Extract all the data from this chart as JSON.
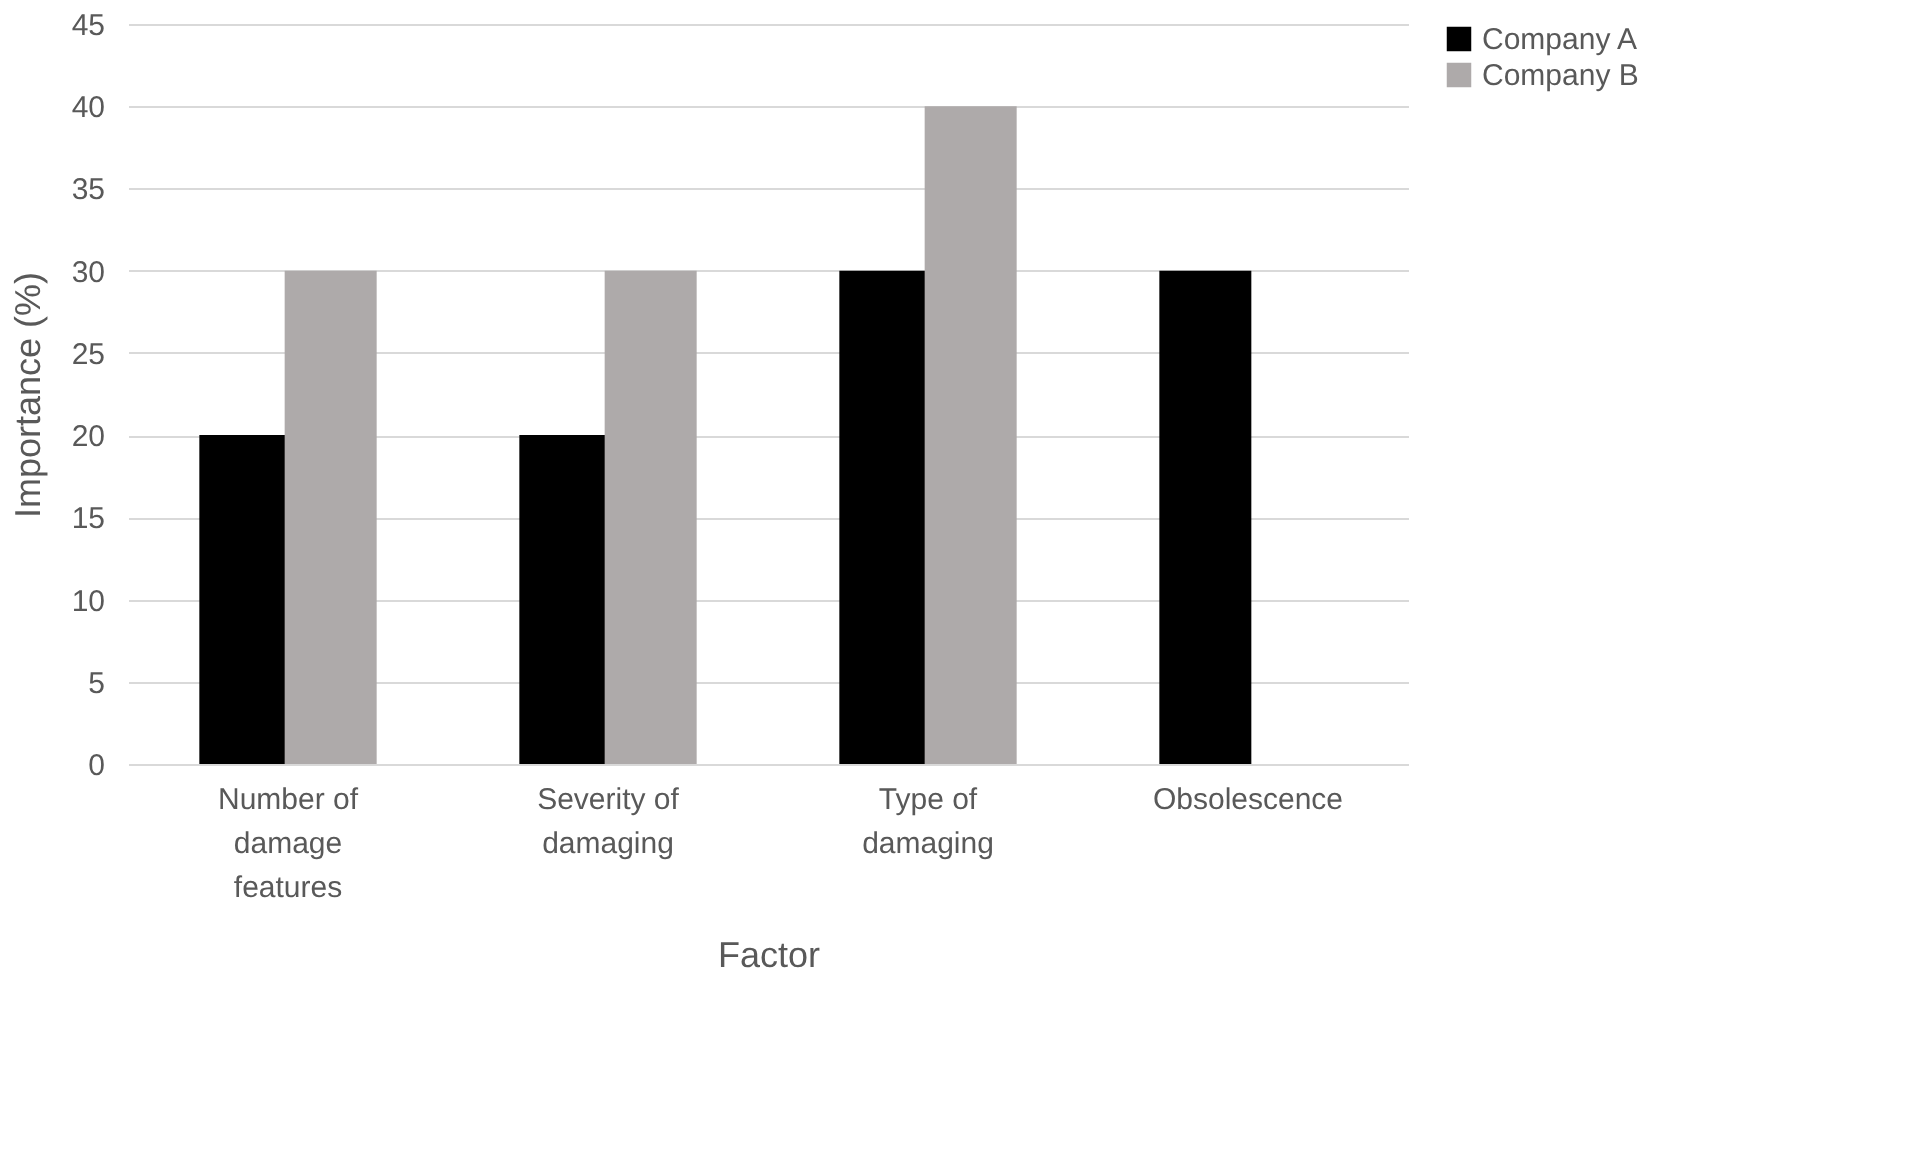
{
  "chart_data": {
    "type": "bar",
    "xlabel": "Factor",
    "ylabel": "Importance (%)",
    "categories": [
      "Number of damage features",
      "Severity of damaging",
      "Type of damaging",
      "Obsolescence"
    ],
    "series": [
      {
        "name": "Company A",
        "color": "#000000",
        "values": [
          20,
          20,
          30,
          30
        ]
      },
      {
        "name": "Company B",
        "color": "#aeaaaa",
        "values": [
          30,
          30,
          40,
          null
        ]
      }
    ],
    "ylim": [
      0,
      45
    ],
    "yticks": [
      0,
      5,
      10,
      15,
      20,
      25,
      30,
      35,
      40,
      45
    ],
    "grid": "y",
    "legend": "right"
  }
}
